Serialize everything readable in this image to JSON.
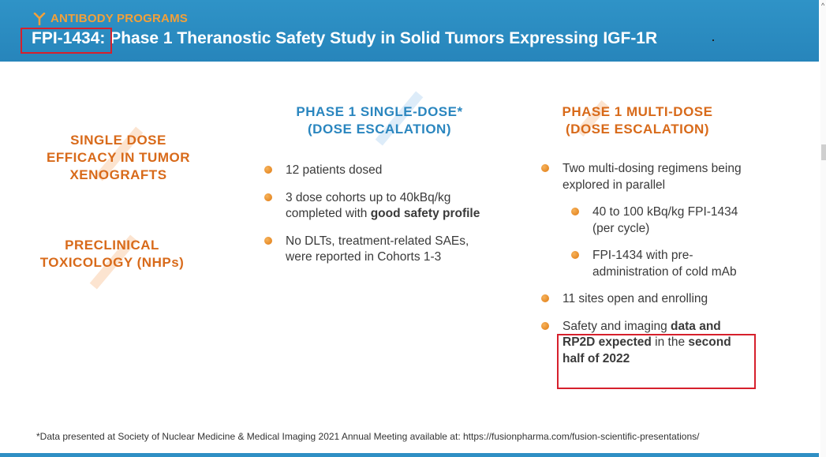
{
  "header": {
    "section_label": "ANTIBODY PROGRAMS",
    "title_prefix": "FPI-1434:",
    "title_rest": " Phase 1 Theranostic Safety Study in Solid Tumors Expressing IGF-1R"
  },
  "left_labels": [
    {
      "line1": "SINGLE DOSE",
      "line2": "EFFICACY IN TUMOR",
      "line3": "XENOGRAFTS"
    },
    {
      "line1": "PRECLINICAL",
      "line2": "TOXICOLOGY (NHPs)"
    }
  ],
  "single_dose": {
    "heading1": "PHASE 1 SINGLE-DOSE*",
    "heading2": "(DOSE ESCALATION)",
    "bullets": {
      "b1": "12 patients dosed",
      "b2_plain": "3 dose cohorts up to 40kBq/kg completed with ",
      "b2_bold": "good safety profile",
      "b3": "No DLTs, treatment-related SAEs, were reported in Cohorts 1-3"
    }
  },
  "multi_dose": {
    "heading1": "PHASE 1 MULTI-DOSE",
    "heading2": "(DOSE ESCALATION)",
    "bullets": {
      "b1": "Two multi-dosing regimens being explored in parallel",
      "s1": "40 to 100 kBq/kg FPI-1434 (per cycle)",
      "s2": "FPI-1434 with pre-administration of cold mAb",
      "b2": "11 sites open and enrolling",
      "b3_part1": "Safety and imaging ",
      "b3_bold1": "data and RP2D expected",
      "b3_part2": " in the ",
      "b3_bold2": "second half of 2022"
    }
  },
  "footnote": "*Data presented at Society of Nuclear Medicine & Medical Imaging 2021 Annual Meeting available at: https://fusionpharma.com/fusion-scientific-presentations/",
  "colors": {
    "header_blue": "#2f93c7",
    "accent_orange": "#d86a1a",
    "heading_blue": "#2a86bf",
    "highlight_red": "#d6202c"
  },
  "icons": [
    "antibody-icon",
    "bullet-dot-icon"
  ]
}
